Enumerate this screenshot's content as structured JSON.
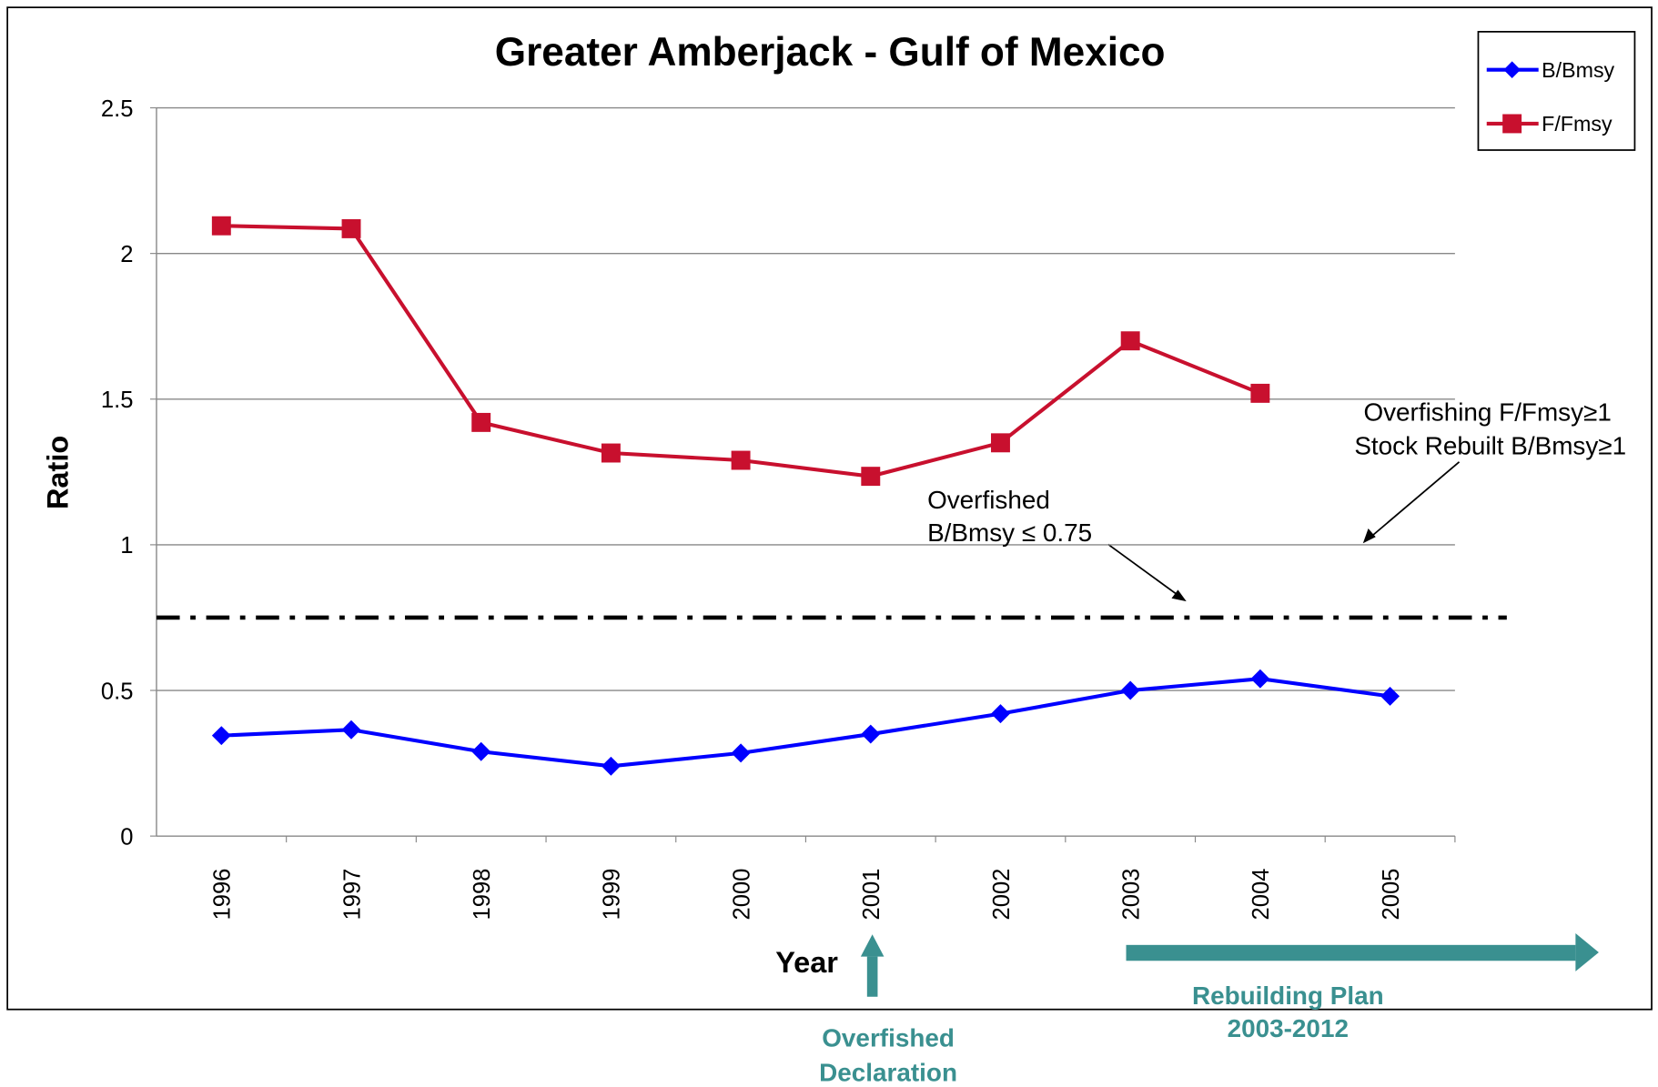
{
  "chart_data": {
    "type": "line",
    "title": "Greater Amberjack - Gulf of Mexico",
    "x_label": "Year",
    "y_label": "Ratio",
    "categories": [
      "1996",
      "1997",
      "1998",
      "1999",
      "2000",
      "2001",
      "2002",
      "2003",
      "2004",
      "2005"
    ],
    "series": [
      {
        "name": "B/Bmsy",
        "color": "#0000ff",
        "marker": "diamond",
        "values": [
          0.345,
          0.365,
          0.29,
          0.24,
          0.285,
          0.35,
          0.42,
          0.5,
          0.54,
          0.48
        ]
      },
      {
        "name": "F/Fmsy",
        "color": "#c8102e",
        "marker": "square",
        "values": [
          2.095,
          2.085,
          1.42,
          1.315,
          1.29,
          1.235,
          1.35,
          1.7,
          1.52,
          null
        ]
      }
    ],
    "ylim": [
      0,
      2.5
    ],
    "yticks": [
      0,
      0.5,
      1,
      1.5,
      2,
      2.5
    ],
    "grid": true,
    "legend": "top-right",
    "reference_line": 0.75,
    "annotations": [
      [
        "Overfished",
        "B/Bmsy ≤ 0.75"
      ],
      [
        "Overfishing F/Fmsy≥1",
        "Stock Rebuilt B/Bmsy≥1"
      ],
      [
        "Overfished",
        "Declaration"
      ],
      [
        "Rebuilding Plan",
        "2003-2012"
      ]
    ]
  }
}
